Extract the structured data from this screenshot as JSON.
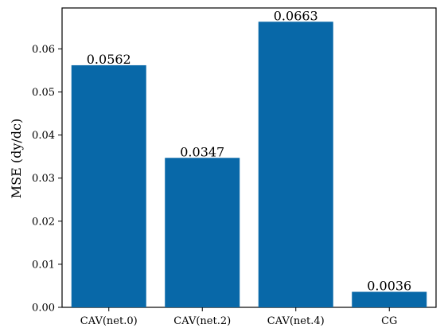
{
  "chart_data": {
    "type": "bar",
    "title": "",
    "xlabel": "",
    "ylabel": "MSE (dy/dc)",
    "categories": [
      "CAV(net.0)",
      "CAV(net.2)",
      "CAV(net.4)",
      "CG"
    ],
    "values": [
      0.0562,
      0.0347,
      0.0663,
      0.0036
    ],
    "data_labels": [
      "0.0562",
      "0.0347",
      "0.0663",
      "0.0036"
    ],
    "ylim": [
      0,
      0.0695
    ],
    "yticks": [
      0.0,
      0.01,
      0.02,
      0.03,
      0.04,
      0.05,
      0.06
    ],
    "ytick_labels": [
      "0.00",
      "0.01",
      "0.02",
      "0.03",
      "0.04",
      "0.05",
      "0.06"
    ],
    "bar_color": "#0868a8",
    "grid": false,
    "legend": "none"
  }
}
